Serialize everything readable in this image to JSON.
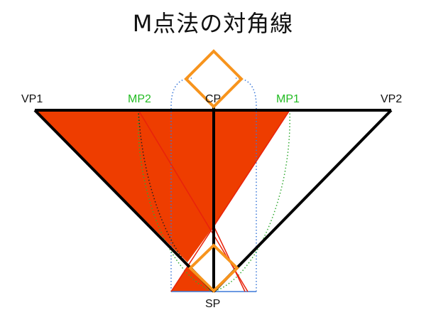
{
  "title": "M点法の対角線",
  "labels": {
    "vp1": "VP1",
    "mp2": "MP2",
    "cp": "CP",
    "mp1": "MP1",
    "vp2": "VP2",
    "sp": "SP"
  },
  "colors": {
    "fill": "#ee3d00",
    "outline": "#000000",
    "diamond": "#f7941d",
    "measure_label": "#22bb22",
    "measure_arc": "#33aa33",
    "blue_guide": "#3b78d8",
    "red_line": "#e8220a",
    "text": "#111111"
  }
}
